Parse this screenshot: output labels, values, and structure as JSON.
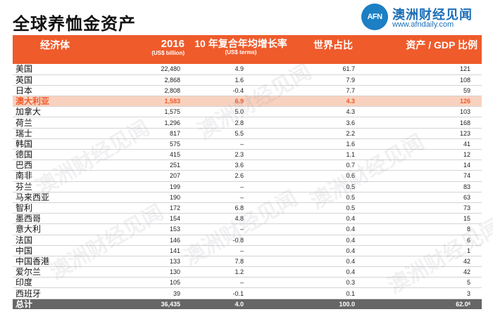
{
  "title": "全球养恤金资产",
  "logo": {
    "badge": "AFN",
    "name": "澳洲财经见闻",
    "url": "www.afndaily.com"
  },
  "watermark": "澳洲财经见闻",
  "table": {
    "headers": {
      "economy": "经济体",
      "assets": "2016",
      "assets_unit": "(US$ billion)",
      "growth": "10 年复合年均增长率",
      "growth_unit": "(US$ terms)",
      "share": "世界占比",
      "gdp": "资产 / GDP 比例"
    },
    "rows": [
      {
        "name": "美国",
        "assets": "22,480",
        "growth": "4.9",
        "share": "61.7",
        "gdp": "121"
      },
      {
        "name": "英国",
        "assets": "2,868",
        "growth": "1.6",
        "share": "7.9",
        "gdp": "108"
      },
      {
        "name": "日本",
        "assets": "2,808",
        "growth": "-0.4",
        "share": "7.7",
        "gdp": "59"
      },
      {
        "name": "澳大利亚",
        "assets": "1,583",
        "growth": "6.9",
        "share": "4.3",
        "gdp": "126"
      },
      {
        "name": "加拿大",
        "assets": "1,575",
        "growth": "5.0",
        "share": "4.3",
        "gdp": "103"
      },
      {
        "name": "荷兰",
        "assets": "1,296",
        "growth": "2.8",
        "share": "3.6",
        "gdp": "168"
      },
      {
        "name": "瑞士",
        "assets": "817",
        "growth": "5.5",
        "share": "2.2",
        "gdp": "123"
      },
      {
        "name": "韩国",
        "assets": "575",
        "growth": "–",
        "share": "1.6",
        "gdp": "41"
      },
      {
        "name": "德国",
        "assets": "415",
        "growth": "2.3",
        "share": "1.1",
        "gdp": "12"
      },
      {
        "name": "巴西",
        "assets": "251",
        "growth": "3.6",
        "share": "0.7",
        "gdp": "14"
      },
      {
        "name": "南非",
        "assets": "207",
        "growth": "2.6",
        "share": "0.6",
        "gdp": "74"
      },
      {
        "name": "芬兰",
        "assets": "199",
        "growth": "–",
        "share": "0.5",
        "gdp": "83"
      },
      {
        "name": "马来西亚",
        "assets": "190",
        "growth": "–",
        "share": "0.5",
        "gdp": "63"
      },
      {
        "name": "智利",
        "assets": "172",
        "growth": "6.8",
        "share": "0.5",
        "gdp": "73"
      },
      {
        "name": "墨西哥",
        "assets": "154",
        "growth": "4.8",
        "share": "0.4",
        "gdp": "15"
      },
      {
        "name": "意大利",
        "assets": "153",
        "growth": "–",
        "share": "0.4",
        "gdp": "8"
      },
      {
        "name": "法国",
        "assets": "146",
        "growth": "-0.8",
        "share": "0.4",
        "gdp": "6"
      },
      {
        "name": "中国",
        "assets": "141",
        "growth": "–",
        "share": "0.4",
        "gdp": "1"
      },
      {
        "name": "中国香港",
        "assets": "133",
        "growth": "7.8",
        "share": "0.4",
        "gdp": "42"
      },
      {
        "name": "爱尔兰",
        "assets": "130",
        "growth": "1.2",
        "share": "0.4",
        "gdp": "42"
      },
      {
        "name": "印度",
        "assets": "105",
        "growth": "–",
        "share": "0.3",
        "gdp": "5"
      },
      {
        "name": "西班牙",
        "assets": "39",
        "growth": "-0.1",
        "share": "0.1",
        "gdp": "3"
      }
    ],
    "total": {
      "name": "总计",
      "assets": "36,435",
      "growth": "4.0",
      "share": "100.0",
      "gdp": "62.0",
      "gdp_sup": "6"
    },
    "highlight_color": "#ef5b2b"
  }
}
